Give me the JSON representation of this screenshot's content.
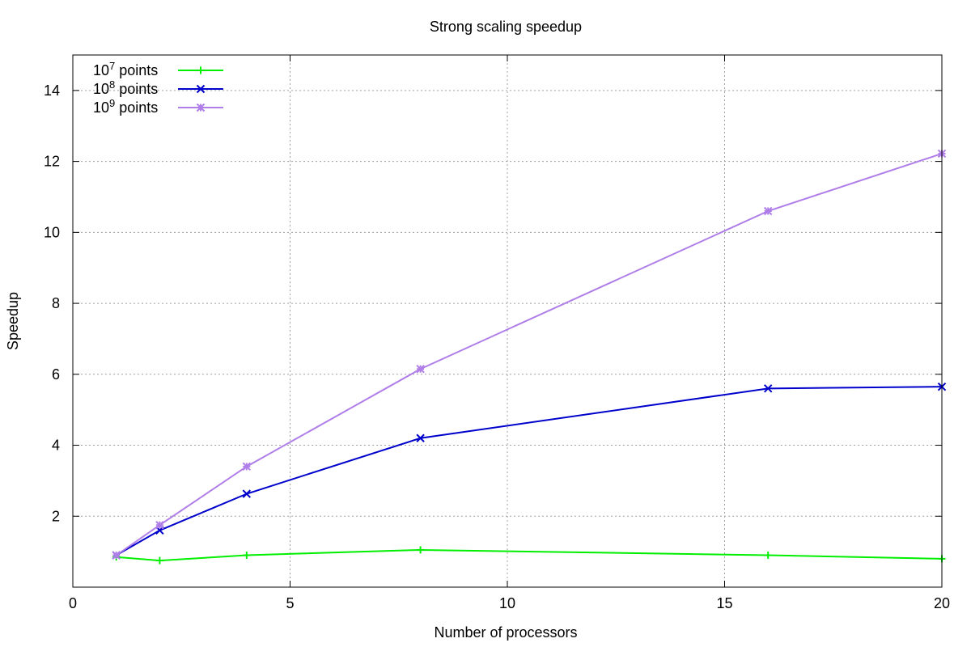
{
  "chart_data": {
    "type": "line",
    "title": "Strong scaling speedup",
    "xlabel": "Number of processors",
    "ylabel": "Speedup",
    "xlim": [
      0,
      20
    ],
    "ylim": [
      0,
      15
    ],
    "xticks": [
      0,
      5,
      10,
      15,
      20
    ],
    "yticks": [
      2,
      4,
      6,
      8,
      10,
      12,
      14
    ],
    "grid": true,
    "legend_position": "top-left",
    "series": [
      {
        "name_base": "10",
        "name_exp": "7",
        "name_rest": " points",
        "color": "#00ee00",
        "marker": "plus",
        "x": [
          1,
          2,
          4,
          8,
          16,
          20
        ],
        "y": [
          0.85,
          0.75,
          0.9,
          1.05,
          0.9,
          0.8
        ]
      },
      {
        "name_base": "10",
        "name_exp": "8",
        "name_rest": " points",
        "color": "#0000cc",
        "marker": "cross",
        "x": [
          1,
          2,
          4,
          8,
          16,
          20
        ],
        "y": [
          0.9,
          1.6,
          2.63,
          4.2,
          5.6,
          5.65
        ]
      },
      {
        "name_base": "10",
        "name_exp": "9",
        "name_rest": " points",
        "color": "#b07ee8",
        "marker": "star",
        "x": [
          1,
          2,
          4,
          8,
          16,
          20
        ],
        "y": [
          0.9,
          1.75,
          3.4,
          6.15,
          10.6,
          12.22
        ]
      }
    ]
  }
}
